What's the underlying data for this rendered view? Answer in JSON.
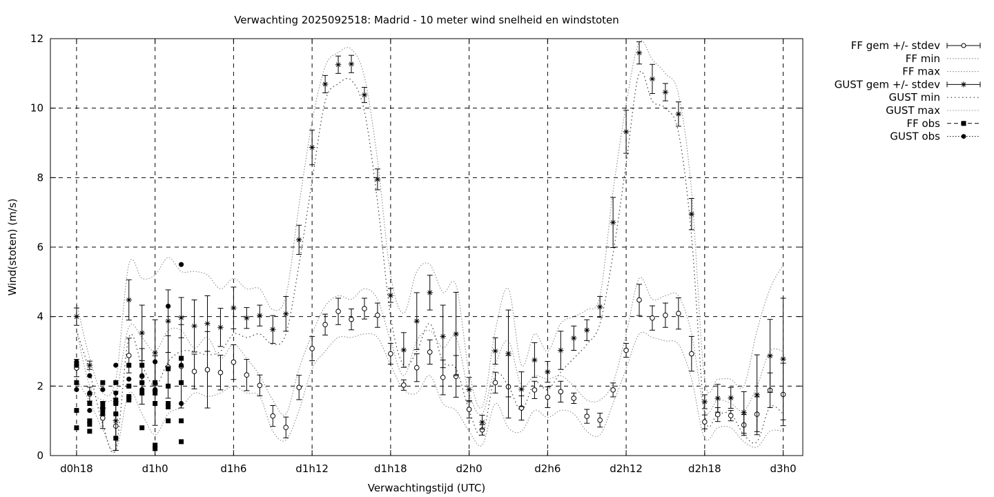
{
  "chart_data": {
    "type": "line",
    "title": "Verwachting 2025092518: Madrid - 10 meter wind snelheid en windstoten",
    "xlabel": "Verwachtingstijd (UTC)",
    "ylabel": "Wind(stoten) (m/s)",
    "xlim": [
      -2,
      55.5
    ],
    "ylim": [
      0,
      12
    ],
    "y_ticks": [
      0,
      2,
      4,
      6,
      8,
      10,
      12
    ],
    "x_ticks": [
      {
        "x": 0,
        "label": "d0h18"
      },
      {
        "x": 6,
        "label": "d1h0"
      },
      {
        "x": 12,
        "label": "d1h6"
      },
      {
        "x": 18,
        "label": "d1h12"
      },
      {
        "x": 24,
        "label": "d1h18"
      },
      {
        "x": 30,
        "label": "d2h0"
      },
      {
        "x": 36,
        "label": "d2h6"
      },
      {
        "x": 42,
        "label": "d2h12"
      },
      {
        "x": 48,
        "label": "d2h18"
      },
      {
        "x": 54,
        "label": "d3h0"
      }
    ],
    "grid": true,
    "legend_position": "outside-right",
    "legend": [
      {
        "label": "FF gem +/- stdev",
        "style": "errorbar-open-circle"
      },
      {
        "label": "FF min",
        "style": "dotted"
      },
      {
        "label": "FF max",
        "style": "dotted"
      },
      {
        "label": "GUST gem +/- stdev",
        "style": "errorbar-star"
      },
      {
        "label": "GUST min",
        "style": "dotted-sparse"
      },
      {
        "label": "GUST max",
        "style": "dotted"
      },
      {
        "label": "FF obs",
        "style": "dashed-square"
      },
      {
        "label": "GUST obs",
        "style": "dotted-circle"
      }
    ],
    "series": [
      {
        "name": "FF gem +/- stdev",
        "x": [
          0,
          1,
          2,
          3,
          4,
          5,
          6,
          7,
          8,
          9,
          10,
          11,
          12,
          13,
          14,
          15,
          16,
          17,
          18,
          19,
          20,
          21,
          22,
          23,
          24,
          25,
          26,
          27,
          28,
          29,
          30,
          31,
          32,
          33,
          34,
          35,
          36,
          37,
          38,
          39,
          40,
          41,
          42,
          43,
          44,
          45,
          46,
          47,
          48,
          49,
          50,
          51,
          52,
          53,
          54
        ],
        "y": [
          2.52,
          1.77,
          1.08,
          0.85,
          2.88,
          2.28,
          1.87,
          2.55,
          2.57,
          2.42,
          2.47,
          2.39,
          2.69,
          2.32,
          2.02,
          1.14,
          0.81,
          1.96,
          3.08,
          3.77,
          4.15,
          3.92,
          4.23,
          4.04,
          2.93,
          2.03,
          2.53,
          2.98,
          2.25,
          2.28,
          1.33,
          0.74,
          2.1,
          1.98,
          1.37,
          1.89,
          1.68,
          1.84,
          1.65,
          1.13,
          1.02,
          1.89,
          3.03,
          4.48,
          3.96,
          4.04,
          4.09,
          2.93,
          0.97,
          1.18,
          1.15,
          0.88,
          1.19,
          1.88,
          1.76
        ],
        "stdev": [
          0.25,
          0.2,
          0.3,
          0.7,
          0.5,
          0.8,
          1.0,
          0.9,
          1.2,
          0.5,
          1.1,
          0.5,
          0.5,
          0.45,
          0.3,
          0.3,
          0.3,
          0.35,
          0.35,
          0.3,
          0.38,
          0.3,
          0.3,
          0.35,
          0.3,
          0.15,
          0.4,
          0.35,
          0.5,
          0.6,
          0.25,
          0.15,
          0.3,
          0.9,
          0.35,
          0.25,
          0.3,
          0.3,
          0.15,
          0.2,
          0.2,
          0.2,
          0.2,
          0.45,
          0.35,
          0.35,
          0.45,
          0.5,
          0.2,
          0.2,
          0.15,
          0.3,
          0.5,
          0.5,
          0.9
        ]
      },
      {
        "name": "FF min",
        "x": [
          0,
          1,
          2,
          3,
          4,
          5,
          6,
          7,
          8,
          9,
          10,
          11,
          12,
          13,
          14,
          15,
          16,
          17,
          18,
          19,
          20,
          21,
          22,
          23,
          24,
          25,
          26,
          27,
          28,
          29,
          30,
          31,
          32,
          33,
          34,
          35,
          36,
          37,
          38,
          39,
          40,
          41,
          42,
          43,
          44,
          45,
          46,
          47,
          48,
          49,
          50,
          51,
          52,
          53,
          54
        ],
        "y": [
          2.2,
          1.55,
          0.75,
          0.15,
          1.8,
          1.2,
          0.6,
          1.2,
          1.4,
          1.8,
          1.7,
          1.8,
          2.0,
          1.8,
          1.7,
          0.7,
          0.45,
          1.3,
          2.5,
          3.0,
          3.4,
          3.4,
          3.5,
          3.4,
          2.6,
          1.9,
          1.8,
          2.3,
          1.5,
          1.3,
          0.7,
          0.3,
          1.5,
          0.8,
          0.7,
          1.3,
          1.1,
          1.3,
          1.2,
          0.7,
          0.6,
          1.5,
          2.5,
          3.5,
          3.4,
          3.3,
          3.2,
          2.2,
          0.5,
          0.8,
          0.8,
          0.4,
          0.25,
          0.7,
          0.7
        ]
      },
      {
        "name": "FF max",
        "x": [
          0,
          1,
          2,
          3,
          4,
          5,
          6,
          7,
          8,
          9,
          10,
          11,
          12,
          13,
          14,
          15,
          16,
          17,
          18,
          19,
          20,
          21,
          22,
          23,
          24,
          25,
          26,
          27,
          28,
          29,
          30,
          31,
          32,
          33,
          34,
          35,
          36,
          37,
          38,
          39,
          40,
          41,
          42,
          43,
          44,
          45,
          46,
          47,
          48,
          49,
          50,
          51,
          52,
          53,
          54
        ],
        "y": [
          3.6,
          2.0,
          1.6,
          1.8,
          3.7,
          3.4,
          3.0,
          3.6,
          3.6,
          3.1,
          3.4,
          2.8,
          3.2,
          2.8,
          2.3,
          1.6,
          1.2,
          2.5,
          3.5,
          4.3,
          4.6,
          4.5,
          4.8,
          4.5,
          3.3,
          2.3,
          3.3,
          3.6,
          3.1,
          3.4,
          1.8,
          1.2,
          2.6,
          3.3,
          2.0,
          2.3,
          2.2,
          2.3,
          2.0,
          1.6,
          1.6,
          2.1,
          3.5,
          5.1,
          4.5,
          4.6,
          4.6,
          3.5,
          1.3,
          1.6,
          1.5,
          1.3,
          2.0,
          3.0,
          3.0
        ]
      },
      {
        "name": "GUST gem +/- stdev",
        "x": [
          0,
          1,
          2,
          3,
          4,
          5,
          6,
          7,
          8,
          9,
          10,
          11,
          12,
          13,
          14,
          15,
          16,
          17,
          18,
          19,
          20,
          21,
          22,
          23,
          24,
          25,
          26,
          27,
          28,
          29,
          30,
          31,
          32,
          33,
          34,
          35,
          36,
          37,
          38,
          39,
          40,
          41,
          42,
          43,
          44,
          45,
          46,
          47,
          48,
          49,
          50,
          51,
          52,
          53,
          54
        ],
        "y": [
          4.0,
          2.6,
          1.35,
          1.0,
          4.48,
          3.53,
          2.96,
          3.87,
          3.97,
          3.73,
          3.8,
          3.69,
          4.25,
          3.96,
          4.03,
          3.63,
          4.08,
          6.21,
          8.87,
          10.69,
          11.25,
          11.27,
          10.38,
          7.95,
          4.61,
          3.04,
          3.87,
          4.69,
          3.43,
          3.5,
          1.9,
          0.96,
          3.01,
          2.94,
          1.91,
          2.75,
          2.41,
          3.03,
          3.38,
          3.61,
          4.28,
          6.71,
          9.32,
          11.59,
          10.84,
          10.46,
          9.83,
          6.95,
          1.55,
          1.65,
          1.66,
          1.24,
          1.75,
          2.87,
          2.78
        ],
        "stdev": [
          0.25,
          0.12,
          0.2,
          0.85,
          0.58,
          0.8,
          0.95,
          0.9,
          0.58,
          0.75,
          0.8,
          0.55,
          0.6,
          0.3,
          0.3,
          0.4,
          0.5,
          0.42,
          0.5,
          0.25,
          0.25,
          0.25,
          0.22,
          0.3,
          0.2,
          0.5,
          0.82,
          0.5,
          0.9,
          1.2,
          0.35,
          0.2,
          0.38,
          1.25,
          0.5,
          0.5,
          0.3,
          0.55,
          0.35,
          0.3,
          0.3,
          0.72,
          0.62,
          0.32,
          0.42,
          0.25,
          0.35,
          0.45,
          0.2,
          0.4,
          0.3,
          0.6,
          1.15,
          1.05,
          1.75
        ]
      },
      {
        "name": "GUST min",
        "x": [
          0,
          1,
          2,
          3,
          4,
          5,
          6,
          7,
          8,
          9,
          10,
          11,
          12,
          13,
          14,
          15,
          16,
          17,
          18,
          19,
          20,
          21,
          22,
          23,
          24,
          25,
          26,
          27,
          28,
          29,
          30,
          31,
          32,
          33,
          34,
          35,
          36,
          37,
          38,
          39,
          40,
          41,
          42,
          43,
          44,
          45,
          46,
          47,
          48,
          49,
          50,
          51,
          52,
          53,
          54
        ],
        "y": [
          3.6,
          2.4,
          0.9,
          0.2,
          3.4,
          2.6,
          2.0,
          2.7,
          3.0,
          3.0,
          2.9,
          3.0,
          3.5,
          3.4,
          3.5,
          3.2,
          3.5,
          5.5,
          7.9,
          10.2,
          10.7,
          10.8,
          9.9,
          7.3,
          4.0,
          2.6,
          3.0,
          3.8,
          2.7,
          2.5,
          1.3,
          0.6,
          2.3,
          2.0,
          1.3,
          2.1,
          1.9,
          2.4,
          2.8,
          3.2,
          3.8,
          5.8,
          8.4,
          11.0,
          10.2,
          10.0,
          9.3,
          6.3,
          1.2,
          1.2,
          1.2,
          0.6,
          0.4,
          1.4,
          1.2
        ]
      },
      {
        "name": "GUST max",
        "x": [
          0,
          1,
          2,
          3,
          4,
          5,
          6,
          7,
          8,
          9,
          10,
          11,
          12,
          13,
          14,
          15,
          16,
          17,
          18,
          19,
          20,
          21,
          22,
          23,
          24,
          25,
          26,
          27,
          28,
          29,
          30,
          31,
          32,
          33,
          34,
          35,
          36,
          37,
          38,
          39,
          40,
          41,
          42,
          43,
          44,
          45,
          46,
          47,
          48,
          49,
          50,
          51,
          52,
          53,
          54
        ],
        "y": [
          4.4,
          2.8,
          1.8,
          2.2,
          5.5,
          5.1,
          5.2,
          5.7,
          5.3,
          5.3,
          5.2,
          4.8,
          5.1,
          4.8,
          4.8,
          4.2,
          4.6,
          7.2,
          9.6,
          11.2,
          11.6,
          11.7,
          10.9,
          8.5,
          5.2,
          4.1,
          5.3,
          5.5,
          4.7,
          4.9,
          2.4,
          1.4,
          3.6,
          4.8,
          2.6,
          3.5,
          3.0,
          3.8,
          4.0,
          4.2,
          4.6,
          7.6,
          10.1,
          11.9,
          11.4,
          11.0,
          10.4,
          7.6,
          2.2,
          2.2,
          2.2,
          2.0,
          3.6,
          4.8,
          5.5
        ]
      },
      {
        "name": "FF obs",
        "x": [
          0,
          0,
          0,
          0,
          1,
          1,
          1,
          1,
          2,
          2,
          2,
          3,
          3,
          3,
          3,
          3,
          4,
          4,
          4,
          4,
          5,
          5,
          5,
          5,
          6,
          6,
          6,
          6,
          6,
          7,
          7,
          7,
          7,
          7,
          8,
          8,
          8,
          8
        ],
        "y": [
          2.1,
          1.3,
          0.8,
          2.6,
          1.5,
          1.0,
          0.9,
          0.7,
          2.1,
          1.5,
          1.3,
          2.1,
          1.6,
          1.5,
          1.2,
          0.5,
          2.6,
          2.0,
          1.7,
          1.6,
          2.6,
          2.1,
          1.8,
          0.8,
          2.1,
          1.8,
          1.5,
          0.3,
          0.2,
          2.0,
          1.5,
          1.4,
          1.0,
          2.5,
          2.8,
          2.1,
          1.0,
          0.4
        ]
      },
      {
        "name": "GUST obs",
        "x": [
          0,
          0,
          0,
          1,
          1,
          1,
          2,
          2,
          2,
          3,
          3,
          3,
          3,
          4,
          4,
          4,
          5,
          5,
          5,
          6,
          6,
          6,
          7,
          7,
          7,
          8,
          8,
          8
        ],
        "y": [
          2.7,
          1.9,
          2.6,
          2.3,
          1.8,
          1.3,
          1.9,
          1.4,
          1.2,
          2.6,
          1.8,
          1.5,
          1.2,
          2.2,
          2.0,
          1.7,
          2.3,
          2.1,
          1.9,
          2.7,
          2.1,
          1.9,
          4.3,
          2.5,
          2.0,
          5.5,
          2.6,
          1.5
        ]
      }
    ]
  }
}
